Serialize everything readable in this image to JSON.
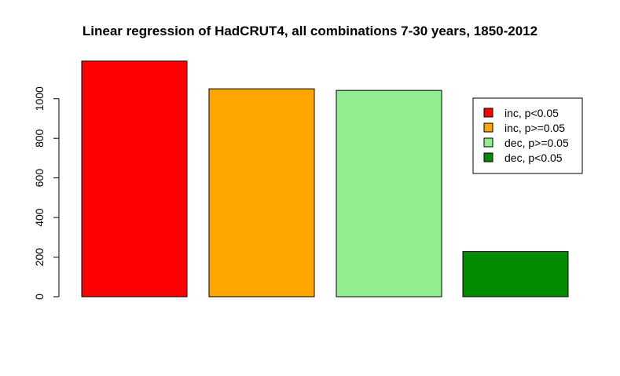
{
  "chart_data": {
    "type": "bar",
    "title": "Linear regression of HadCRUT4, all combinations 7-30 years, 1850-2012",
    "xlabel": "",
    "ylabel": "",
    "categories": [
      "inc, p<0.05",
      "inc, p>=0.05",
      "dec, p>=0.05",
      "dec, p<0.05"
    ],
    "values": [
      1190,
      1050,
      1042,
      228
    ],
    "colors": [
      "#ff0000",
      "#ffa500",
      "#90ee90",
      "#008b00"
    ],
    "y_ticks": [
      0,
      200,
      400,
      600,
      800,
      1000
    ],
    "ylim": [
      0,
      1190
    ],
    "grid": false,
    "legend": {
      "position": "right",
      "entries": [
        {
          "label": "inc, p<0.05",
          "color": "#ff0000"
        },
        {
          "label": "inc, p>=0.05",
          "color": "#ffa500"
        },
        {
          "label": "dec, p>=0.05",
          "color": "#90ee90"
        },
        {
          "label": "dec, p<0.05",
          "color": "#008b00"
        }
      ]
    }
  }
}
